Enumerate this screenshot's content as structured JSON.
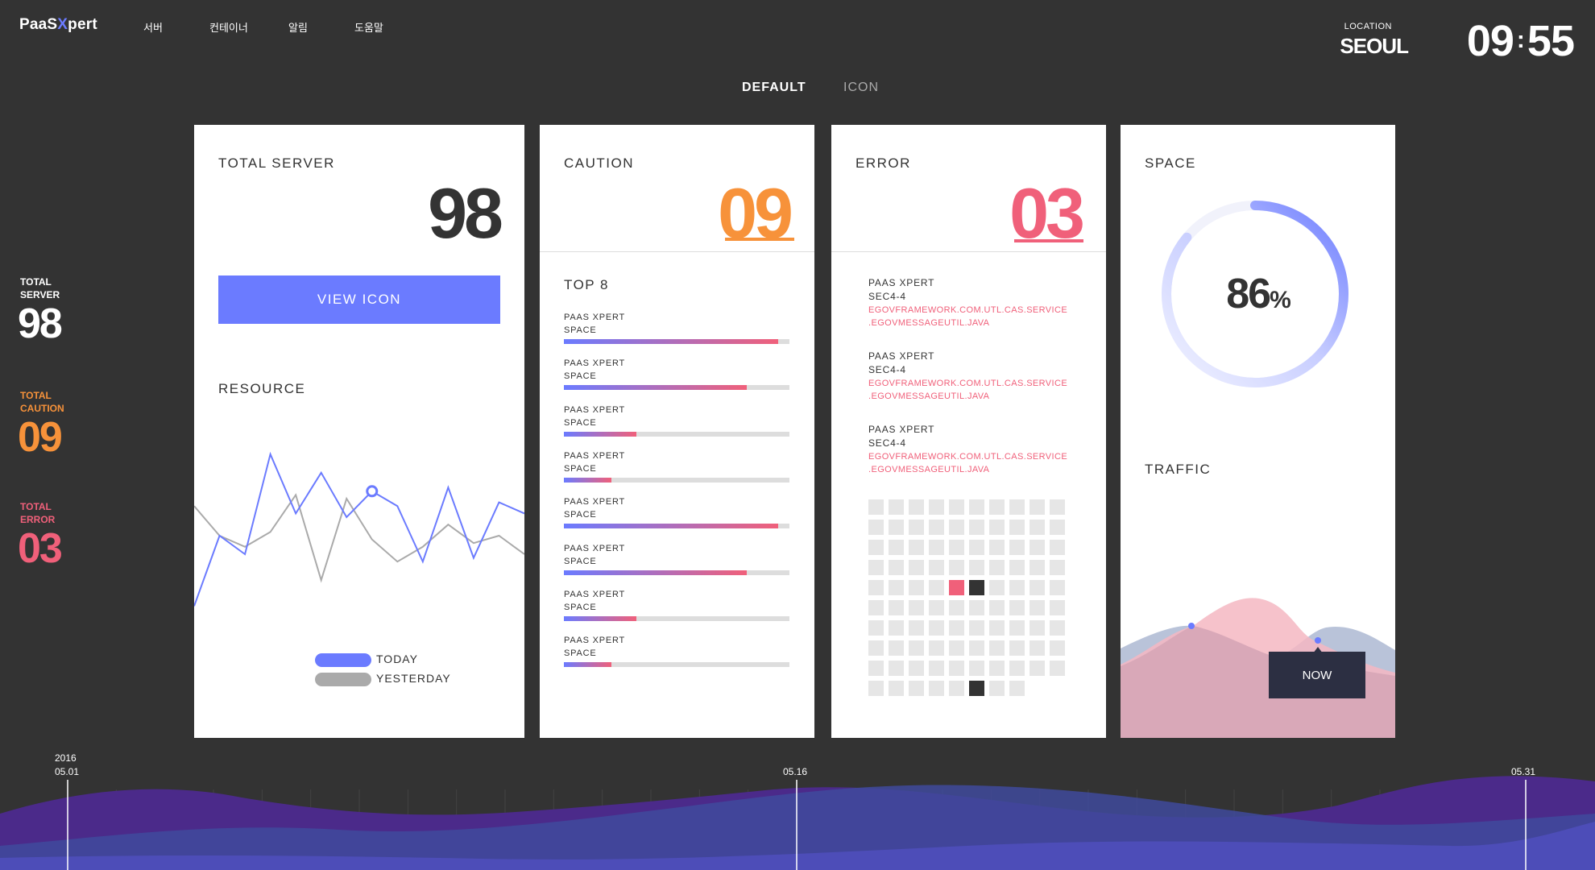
{
  "header": {
    "logo_prefix": "PaaS",
    "logo_x": "X",
    "logo_suffix": "pert",
    "nav": [
      "서버",
      "컨테이너",
      "알림",
      "도움말"
    ],
    "location_label": "LOCATION",
    "location_city": "SEOUL",
    "clock_hours": "09",
    "clock_minutes": "55"
  },
  "view_tabs": {
    "default": "DEFAULT",
    "icon": "ICON"
  },
  "sidebar": {
    "server_label_1": "TOTAL",
    "server_label_2": "SERVER",
    "server_value": "98",
    "caution_label_1": "TOTAL",
    "caution_label_2": "CAUTION",
    "caution_value": "09",
    "error_label_1": "TOTAL",
    "error_label_2": "ERROR",
    "error_value": "03"
  },
  "colors": {
    "accent": "#6b7bff",
    "caution": "#f7923a",
    "error": "#f0607a",
    "yesterday": "#aaaaaa"
  },
  "server_card": {
    "title": "TOTAL SERVER",
    "value": "98",
    "button": "VIEW ICON",
    "resource_title": "RESOURCE",
    "legend_today": "TODAY",
    "legend_yesterday": "YESTERDAY"
  },
  "chart_data": {
    "type": "line",
    "title": "RESOURCE",
    "x": [
      0,
      1,
      2,
      3,
      4,
      5,
      6,
      7,
      8,
      9,
      10,
      11,
      12,
      13
    ],
    "series": [
      {
        "name": "TODAY",
        "values": [
          12,
          50,
          40,
          94,
          62,
          84,
          60,
          74,
          66,
          36,
          76,
          38,
          68,
          62
        ]
      },
      {
        "name": "YESTERDAY",
        "values": [
          66,
          50,
          44,
          52,
          72,
          26,
          70,
          48,
          36,
          44,
          56,
          46,
          50,
          40
        ]
      }
    ],
    "ylim": [
      0,
      100
    ],
    "highlight_index": 7,
    "grid": false,
    "legend": "bottom-center"
  },
  "caution_card": {
    "title": "CAUTION",
    "value": "09",
    "top_title": "TOP 8",
    "items": [
      {
        "line1": "PAAS XPERT",
        "line2": "SPACE",
        "pct": 95
      },
      {
        "line1": "PAAS XPERT",
        "line2": "SPACE",
        "pct": 81
      },
      {
        "line1": "PAAS XPERT",
        "line2": "SPACE",
        "pct": 32
      },
      {
        "line1": "PAAS XPERT",
        "line2": "SPACE",
        "pct": 21
      },
      {
        "line1": "PAAS XPERT",
        "line2": "SPACE",
        "pct": 95
      },
      {
        "line1": "PAAS XPERT",
        "line2": "SPACE",
        "pct": 81
      },
      {
        "line1": "PAAS XPERT",
        "line2": "SPACE",
        "pct": 32
      },
      {
        "line1": "PAAS XPERT",
        "line2": "SPACE",
        "pct": 21
      }
    ]
  },
  "error_card": {
    "title": "ERROR",
    "value": "03",
    "items": [
      {
        "name": "PAAS XPERT",
        "sec": "SEC4-4",
        "path1": "EGOVFRAMEWORK.COM.UTL.CAS.SERVICE",
        "path2": ".EGOVMESSAGEUTIL.JAVA"
      },
      {
        "name": "PAAS XPERT",
        "sec": "SEC4-4",
        "path1": "EGOVFRAMEWORK.COM.UTL.CAS.SERVICE",
        "path2": ".EGOVMESSAGEUTIL.JAVA"
      },
      {
        "name": "PAAS XPERT",
        "sec": "SEC4-4",
        "path1": "EGOVFRAMEWORK.COM.UTL.CAS.SERVICE",
        "path2": ".EGOVMESSAGEUTIL.JAVA"
      }
    ],
    "grid": {
      "total": 98,
      "columns": 10,
      "error_cells": [
        44
      ],
      "dark_cells": [
        45,
        95
      ]
    }
  },
  "space_card": {
    "title": "SPACE",
    "percent": 86,
    "unit": "%",
    "traffic_title": "TRAFFIC",
    "now_label": "NOW"
  },
  "timeline": {
    "start_year": "2016",
    "start_date": "05.01",
    "mid_date": "05.16",
    "end_date": "05.31"
  }
}
